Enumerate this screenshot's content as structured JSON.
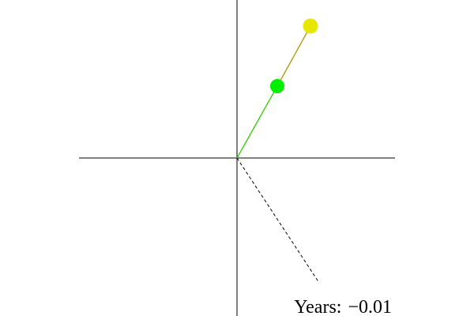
{
  "readout": {
    "label": "Years:",
    "value": "−0.01"
  },
  "colors": {
    "inner_body": "#00ee00",
    "inner_arm": "#33cc00",
    "outer_body": "#e6e600",
    "outer_arm": "#aa9900",
    "axes": "#000000",
    "reference_line": "#000000"
  }
}
